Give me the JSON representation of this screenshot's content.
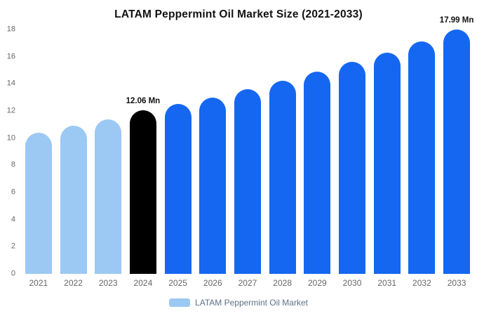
{
  "chart_data": {
    "type": "bar",
    "title": "LATAM Peppermint Oil Market Size (2021-2033)",
    "xlabel": "",
    "ylabel": "",
    "categories": [
      "2021",
      "2022",
      "2023",
      "2024",
      "2025",
      "2026",
      "2027",
      "2028",
      "2029",
      "2030",
      "2031",
      "2032",
      "2033"
    ],
    "values": [
      10.4,
      10.9,
      11.4,
      12.06,
      12.5,
      13.0,
      13.6,
      14.2,
      14.9,
      15.6,
      16.3,
      17.1,
      17.99
    ],
    "bar_color_keys": [
      "light",
      "light",
      "light",
      "black",
      "blue",
      "blue",
      "blue",
      "blue",
      "blue",
      "blue",
      "blue",
      "blue",
      "blue"
    ],
    "annotations": [
      {
        "index": 3,
        "text": "12.06 Mn"
      },
      {
        "index": 12,
        "text": "17.99 Mn"
      }
    ],
    "ylim": [
      0,
      18
    ],
    "yticks": [
      0,
      2,
      4,
      6,
      8,
      10,
      12,
      14,
      16,
      18
    ],
    "grid": false,
    "legend_position": "bottom",
    "legend": [
      {
        "label": "LATAM Peppermint Oil Market",
        "color_key": "light"
      }
    ],
    "colors": {
      "light": "#9CC8F4",
      "black": "#000000",
      "blue": "#1567F2"
    }
  }
}
